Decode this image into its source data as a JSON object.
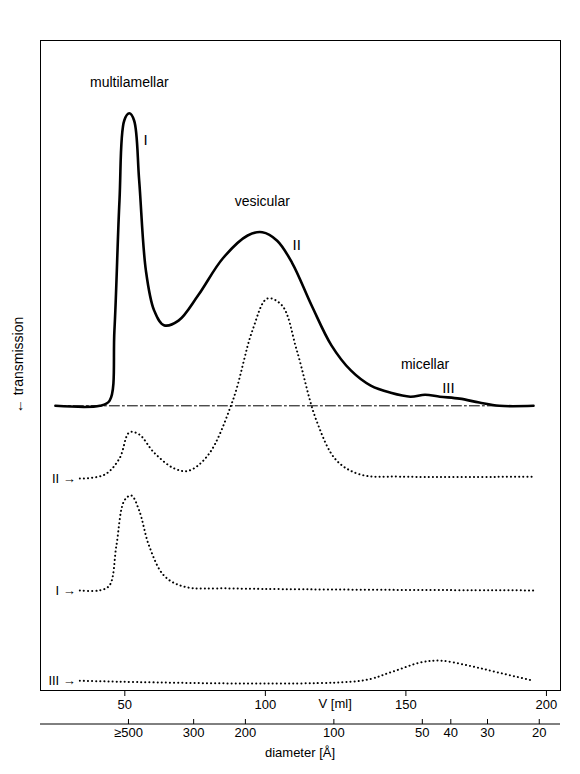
{
  "chart_data": {
    "type": "line",
    "x_label": "V [ml]",
    "y_label": "← transmission",
    "xlim": [
      20,
      205
    ],
    "xticks": [
      50,
      100,
      150,
      200
    ],
    "ylim": [
      0,
      100
    ],
    "tick_labels": "x",
    "x2": {
      "label": "diameter [Å]",
      "lim": [
        1000,
        17
      ],
      "log": true,
      "ticks": [
        {
          "value": 500,
          "label": "≥500"
        },
        300,
        200,
        100,
        50,
        40,
        30,
        20
      ]
    },
    "series": [
      {
        "color": "#000000",
        "line_style": "solid",
        "baseline": 43.8,
        "peak_labels": [
          "I",
          "II",
          "III"
        ],
        "structure_labels": [
          "multilamellar",
          "vesicular",
          "micellar"
        ],
        "x": [
          25.3,
          41.1,
          44.6,
          46.3,
          48.1,
          49.8,
          51.6,
          53.3,
          55.1,
          57.5,
          60.4,
          63.9,
          69.1,
          76.1,
          84.9,
          93.7,
          98.9,
          104.2,
          109.5,
          116.5,
          123.5,
          130.5,
          137.5,
          144.6,
          151.6,
          156.8,
          162.1,
          169.1,
          176.1,
          183.2,
          195.4
        ],
        "values": [
          43.8,
          43.8,
          44.6,
          55.4,
          75.4,
          87.7,
          88.8,
          87.7,
          78.5,
          64.6,
          58.5,
          56.2,
          56.9,
          60.8,
          66.5,
          70,
          70.5,
          69.2,
          65.8,
          59.2,
          53.1,
          49.2,
          46.9,
          45.8,
          45.2,
          45.5,
          45.2,
          44.9,
          44.3,
          43.8,
          43.8
        ]
      },
      {
        "name": "II →",
        "color": "#000000",
        "line_style": "dotted",
        "x": [
          34,
          42.8,
          48.1,
          51.6,
          55.1,
          60.4,
          67.4,
          72.6,
          79.6,
          88.4,
          95.4,
          100.7,
          106,
          111.2,
          118.2,
          125.3,
          134,
          148.1,
          195.4
        ],
        "values": [
          32.6,
          33.2,
          35.7,
          39.7,
          39.4,
          36.6,
          34.2,
          33.8,
          36.2,
          44.6,
          55.4,
          60.3,
          59.2,
          52.3,
          41.5,
          35.4,
          33.2,
          32.9,
          32.9
        ]
      },
      {
        "name": "I →",
        "color": "#000000",
        "line_style": "dotted",
        "x": [
          34,
          41.1,
          44.6,
          47,
          49.8,
          52.3,
          55.1,
          58.6,
          63.9,
          70.9,
          88.4,
          195.4
        ],
        "values": [
          15.4,
          15.4,
          16.2,
          22.3,
          29.2,
          30,
          27.7,
          22.3,
          17.7,
          16,
          15.7,
          15.4
        ]
      },
      {
        "name": "III →",
        "color": "#000000",
        "line_style": "dotted",
        "x": [
          34,
          134,
          144.6,
          155.1,
          162.1,
          172.6,
          182.5,
          195.4
        ],
        "values": [
          1.5,
          1.5,
          2.8,
          4.3,
          4.6,
          3.8,
          2.8,
          1.5
        ]
      }
    ]
  }
}
